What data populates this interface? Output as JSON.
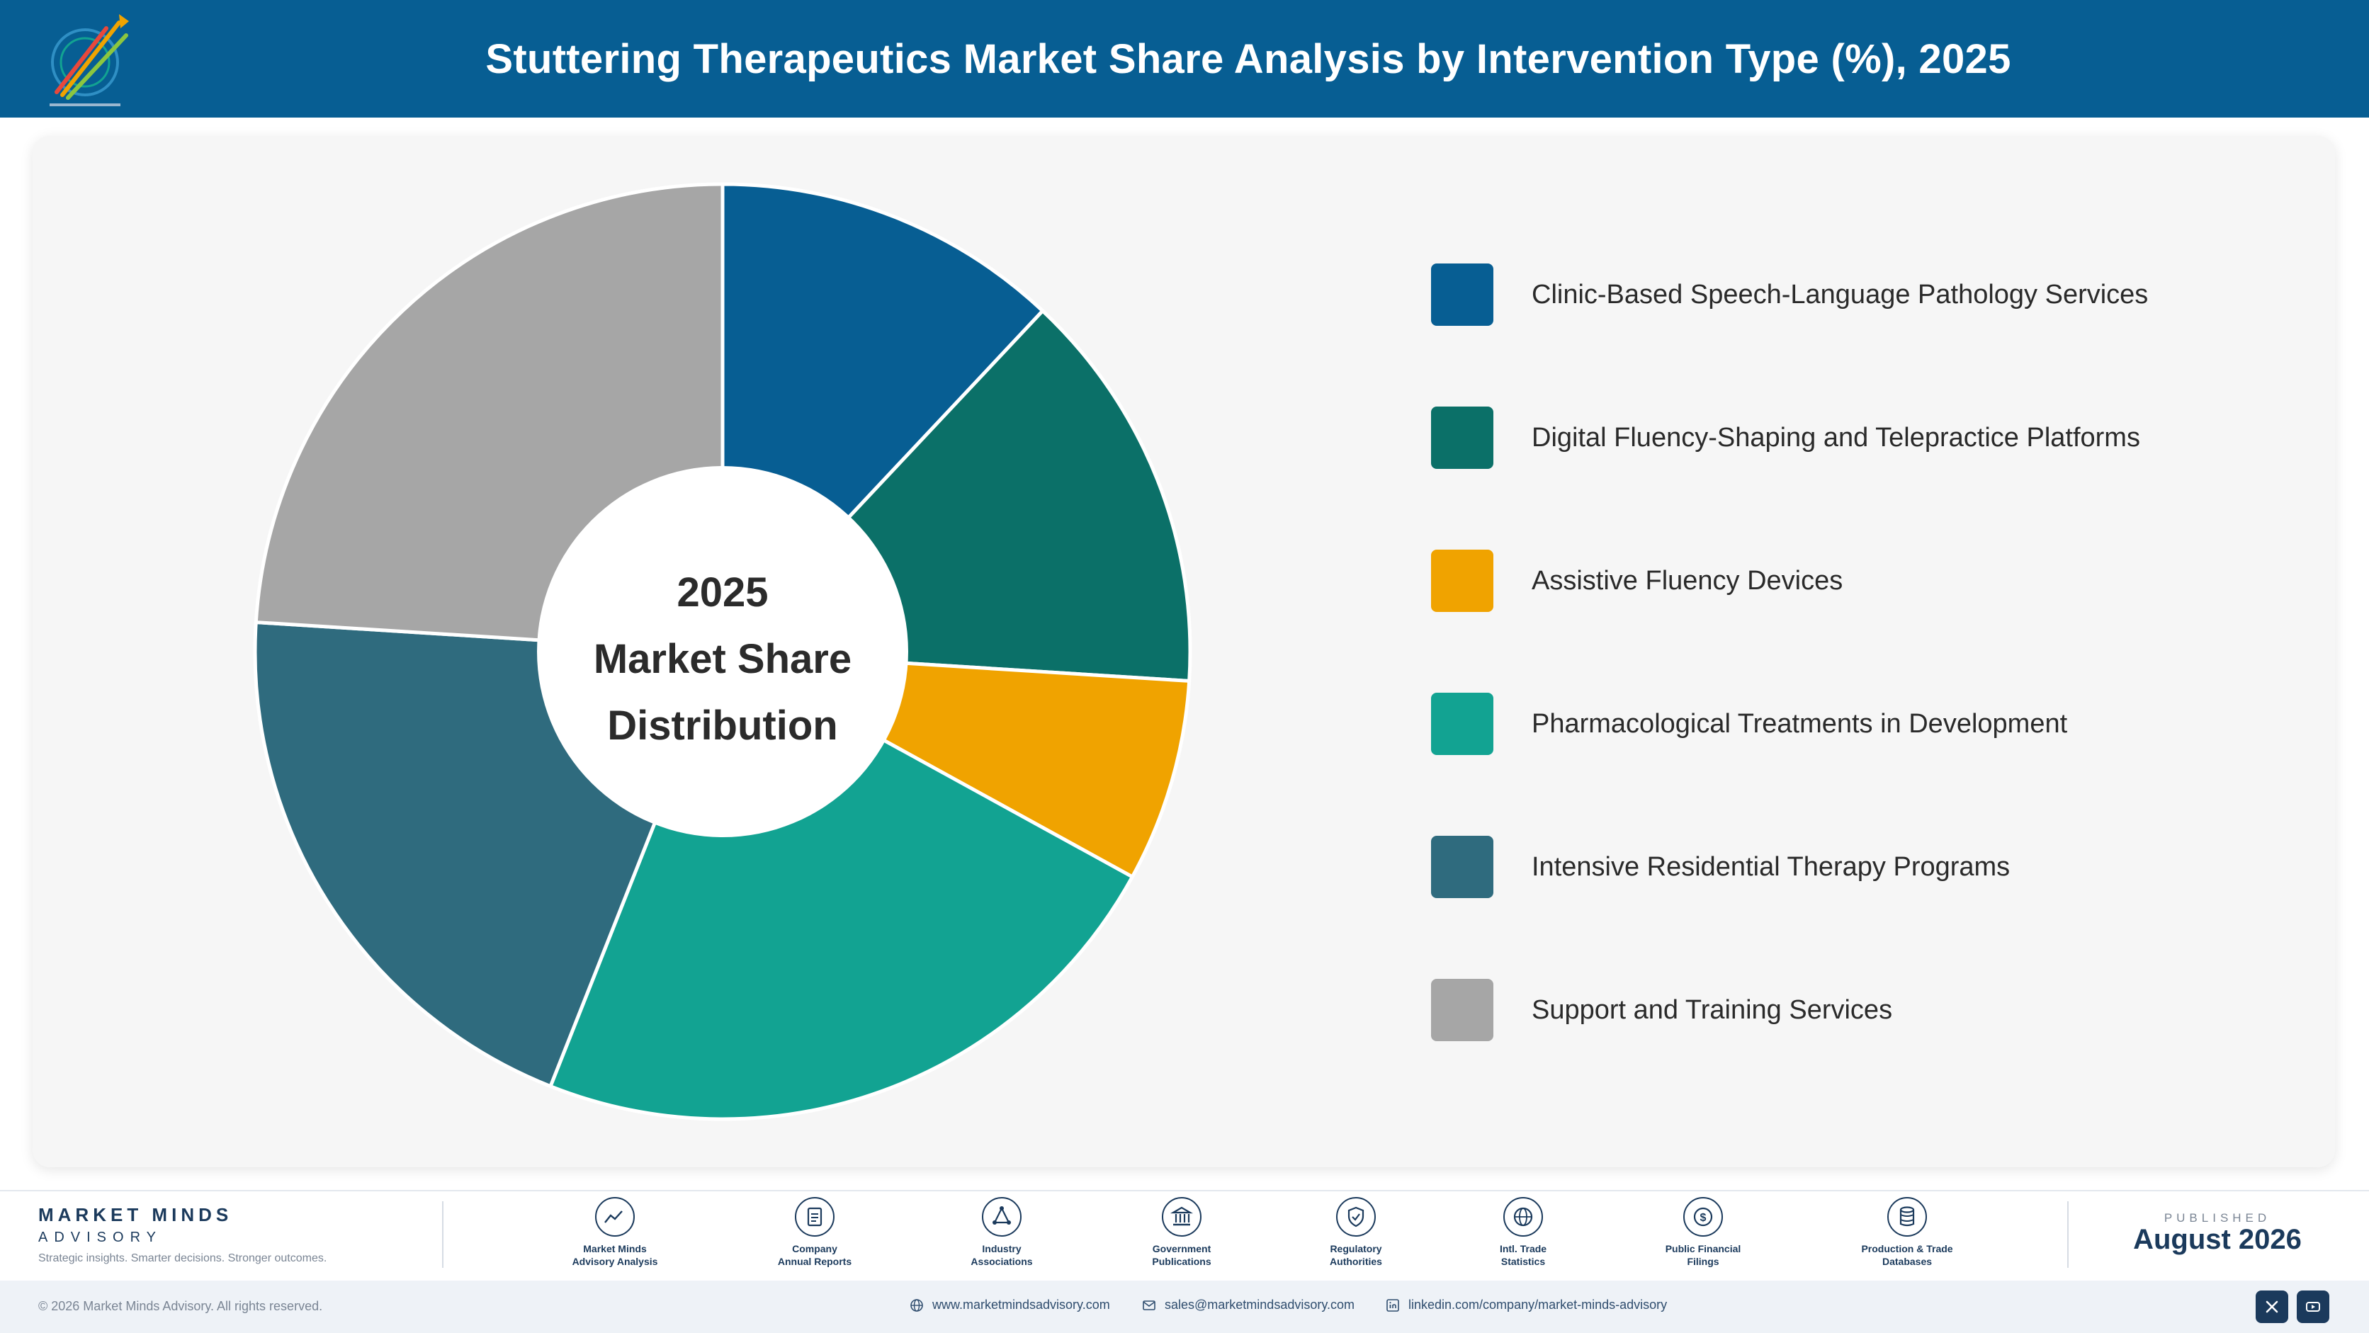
{
  "header": {
    "title": "Stuttering Therapeutics Market Share Analysis by Intervention Type (%), 2025"
  },
  "center_label": {
    "line1": "2025",
    "line2": "Market Share",
    "line3": "Distribution"
  },
  "chart_data": {
    "type": "pie",
    "style": "donut",
    "categories": [
      "Clinic-Based Speech-Language Pathology Services",
      "Digital Fluency-Shaping and Telepractice Platforms",
      "Assistive Fluency Devices",
      "Pharmacological Treatments in Development",
      "Intensive Residential Therapy Programs",
      "Support and Training Services"
    ],
    "values": [
      12,
      14,
      7,
      23,
      20,
      24
    ],
    "colors": [
      "#075e93",
      "#0b7068",
      "#f0a300",
      "#12a392",
      "#2f6b7e",
      "#a6a6a6"
    ],
    "legend_position": "right"
  },
  "footer": {
    "brand_name": "MARKET MINDS",
    "brand_sub": "ADVISORY",
    "tagline": "Strategic insights. Smarter decisions. Stronger outcomes.",
    "sources": [
      {
        "label": "Market Minds\nAdvisory Analysis",
        "icon": "trend-icon"
      },
      {
        "label": "Company\nAnnual Reports",
        "icon": "document-icon"
      },
      {
        "label": "Industry\nAssociations",
        "icon": "network-icon"
      },
      {
        "label": "Government\nPublications",
        "icon": "government-building-icon"
      },
      {
        "label": "Regulatory\nAuthorities",
        "icon": "shield-check-icon"
      },
      {
        "label": "Intl. Trade\nStatistics",
        "icon": "globe-icon"
      },
      {
        "label": "Public Financial\nFilings",
        "icon": "dollar-coin-icon"
      },
      {
        "label": "Production & Trade\nDatabases",
        "icon": "database-icon"
      }
    ],
    "published_label": "PUBLISHED",
    "published_date": "August 2026",
    "copyright": "© 2026 Market Minds Advisory. All rights reserved.",
    "website": "www.marketmindsadvisory.com",
    "email": "sales@marketmindsadvisory.com",
    "linkedin": "linkedin.com/company/market-minds-advisory"
  }
}
